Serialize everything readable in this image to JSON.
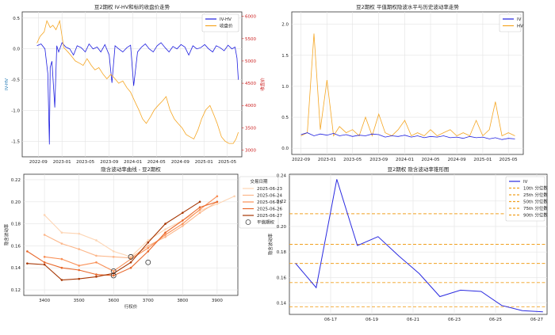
{
  "chart_data": [
    {
      "type": "line",
      "title": "豆2期权 IV-HV和标的收盘价走势",
      "xlabel": "",
      "ylabel": "IV-HV",
      "y2label": "收盘价",
      "x_ticks": [
        "2022-09",
        "2023-01",
        "2023-05",
        "2023-09",
        "2024-01",
        "2024-05",
        "2024-09",
        "2025-01",
        "2025-05"
      ],
      "y_ticks": [
        "0.5",
        "0.0",
        "-0.5",
        "-1.0",
        "-1.5"
      ],
      "y2_ticks": [
        "6000",
        "5500",
        "5000",
        "4500",
        "4000",
        "3500",
        "3000"
      ],
      "ylim": [
        -1.75,
        0.6
      ],
      "y2lim": [
        2850,
        6100
      ],
      "grid": true,
      "legend_position": "top-right",
      "series": [
        {
          "name": "IV-HV",
          "axis": "left",
          "color": "#1f1fe0",
          "x": [
            "2022-08-25",
            "2022-09-15",
            "2022-10-05",
            "2022-10-20",
            "2022-10-28",
            "2022-11-01",
            "2022-11-10",
            "2022-11-25",
            "2022-12-05",
            "2022-12-15",
            "2023-01-01",
            "2023-01-20",
            "2023-02-10",
            "2023-03-01",
            "2023-03-20",
            "2023-04-10",
            "2023-05-01",
            "2023-05-20",
            "2023-06-10",
            "2023-07-01",
            "2023-07-20",
            "2023-08-10",
            "2023-09-01",
            "2023-09-15",
            "2023-10-01",
            "2023-10-20",
            "2023-11-10",
            "2023-12-01",
            "2023-12-20",
            "2024-01-05",
            "2024-01-25",
            "2024-02-15",
            "2024-03-05",
            "2024-03-25",
            "2024-04-15",
            "2024-05-05",
            "2024-05-25",
            "2024-06-15",
            "2024-07-05",
            "2024-07-25",
            "2024-08-15",
            "2024-09-05",
            "2024-09-25",
            "2024-10-15",
            "2024-11-05",
            "2024-11-25",
            "2024-12-15",
            "2025-01-05",
            "2025-01-25",
            "2025-02-15",
            "2025-03-05",
            "2025-03-25",
            "2025-04-15",
            "2025-05-05",
            "2025-05-25",
            "2025-06-10",
            "2025-06-20",
            "2025-06-27"
          ],
          "y": [
            0.05,
            0.08,
            0.0,
            -0.4,
            -1.55,
            -0.3,
            -0.2,
            -0.95,
            0.05,
            -0.05,
            0.1,
            0.03,
            0.0,
            -0.1,
            0.05,
            0.02,
            -0.05,
            0.08,
            0.0,
            0.03,
            -0.05,
            0.07,
            -0.1,
            -0.55,
            0.05,
            0.0,
            -0.05,
            0.02,
            0.06,
            -0.6,
            -0.05,
            0.03,
            0.08,
            0.0,
            -0.05,
            0.05,
            0.1,
            0.02,
            -0.05,
            0.04,
            0.0,
            0.07,
            0.03,
            -0.1,
            0.05,
            0.0,
            0.02,
            0.07,
            0.0,
            -0.05,
            0.05,
            0.02,
            -0.03,
            0.06,
            0.0,
            0.03,
            -0.15,
            -0.5
          ]
        },
        {
          "name": "收盘价",
          "axis": "right",
          "color": "#f5a623",
          "x": [
            "2022-08-25",
            "2022-09-10",
            "2022-10-01",
            "2022-10-15",
            "2022-11-01",
            "2022-11-15",
            "2022-12-01",
            "2022-12-20",
            "2023-01-10",
            "2023-02-01",
            "2023-02-20",
            "2023-03-10",
            "2023-04-01",
            "2023-04-20",
            "2023-05-10",
            "2023-06-01",
            "2023-06-20",
            "2023-07-10",
            "2023-08-01",
            "2023-08-20",
            "2023-09-10",
            "2023-10-01",
            "2023-10-20",
            "2023-11-10",
            "2023-12-01",
            "2023-12-20",
            "2024-01-10",
            "2024-02-01",
            "2024-02-20",
            "2024-03-10",
            "2024-04-01",
            "2024-04-20",
            "2024-05-10",
            "2024-06-01",
            "2024-06-20",
            "2024-07-10",
            "2024-08-01",
            "2024-08-20",
            "2024-09-10",
            "2024-10-01",
            "2024-10-20",
            "2024-11-10",
            "2024-12-01",
            "2024-12-20",
            "2025-01-10",
            "2025-02-01",
            "2025-02-20",
            "2025-03-10",
            "2025-04-01",
            "2025-04-20",
            "2025-05-10",
            "2025-06-01",
            "2025-06-15",
            "2025-06-27"
          ],
          "y": [
            5400,
            5550,
            5650,
            5900,
            5750,
            5800,
            5700,
            5900,
            5300,
            5200,
            5100,
            5000,
            4950,
            4900,
            5050,
            4900,
            4800,
            4850,
            4700,
            4600,
            4700,
            4600,
            4500,
            4550,
            4400,
            4300,
            4100,
            3900,
            3700,
            3600,
            3750,
            3900,
            4000,
            4100,
            4200,
            3900,
            3700,
            3600,
            3500,
            3350,
            3300,
            3250,
            3450,
            3700,
            3900,
            4000,
            3800,
            3600,
            3300,
            3200,
            3150,
            3150,
            3250,
            3400
          ]
        }
      ]
    },
    {
      "type": "line",
      "title": "豆2期权 平值期权隐波水平与历史波动率走势",
      "xlabel": "",
      "ylabel": "",
      "x_ticks": [
        "2022-09",
        "2023-01",
        "2023-05",
        "2023-09",
        "2024-01",
        "2024-05",
        "2024-09",
        "2025-01",
        "2025-05"
      ],
      "y_ticks": [
        "2.0",
        "1.5",
        "1.0",
        "0.5",
        "0.0"
      ],
      "ylim": [
        -0.1,
        2.2
      ],
      "grid": true,
      "legend_position": "top-right",
      "series": [
        {
          "name": "IV",
          "color": "#1f1fe0",
          "x": [
            "2022-09",
            "2022-10",
            "2022-11",
            "2022-12",
            "2023-01",
            "2023-02",
            "2023-03",
            "2023-04",
            "2023-05",
            "2023-06",
            "2023-07",
            "2023-08",
            "2023-09",
            "2023-10",
            "2023-11",
            "2023-12",
            "2024-01",
            "2024-02",
            "2024-03",
            "2024-04",
            "2024-05",
            "2024-06",
            "2024-07",
            "2024-08",
            "2024-09",
            "2024-10",
            "2024-11",
            "2024-12",
            "2025-01",
            "2025-02",
            "2025-03",
            "2025-04",
            "2025-05",
            "2025-06"
          ],
          "y": [
            0.22,
            0.25,
            0.2,
            0.23,
            0.21,
            0.24,
            0.2,
            0.22,
            0.19,
            0.21,
            0.2,
            0.23,
            0.22,
            0.18,
            0.2,
            0.19,
            0.21,
            0.18,
            0.2,
            0.17,
            0.19,
            0.18,
            0.2,
            0.17,
            0.18,
            0.16,
            0.19,
            0.17,
            0.18,
            0.15,
            0.17,
            0.14,
            0.16,
            0.15
          ]
        },
        {
          "name": "HV",
          "color": "#f5a623",
          "x": [
            "2022-09",
            "2022-10",
            "2022-11",
            "2022-12",
            "2023-01",
            "2023-02",
            "2023-03",
            "2023-04",
            "2023-05",
            "2023-06",
            "2023-07",
            "2023-08",
            "2023-09",
            "2023-10",
            "2023-11",
            "2023-12",
            "2024-01",
            "2024-02",
            "2024-03",
            "2024-04",
            "2024-05",
            "2024-06",
            "2024-07",
            "2024-08",
            "2024-09",
            "2024-10",
            "2024-11",
            "2024-12",
            "2025-01",
            "2025-02",
            "2025-03",
            "2025-04",
            "2025-05",
            "2025-06"
          ],
          "y": [
            0.2,
            0.25,
            1.85,
            0.3,
            1.1,
            0.2,
            0.35,
            0.25,
            0.3,
            0.2,
            0.5,
            0.2,
            0.55,
            0.25,
            0.2,
            0.3,
            0.45,
            0.2,
            0.25,
            0.2,
            0.3,
            0.2,
            0.25,
            0.3,
            0.2,
            0.25,
            0.2,
            0.45,
            0.2,
            0.3,
            0.75,
            0.2,
            0.25,
            0.2
          ]
        }
      ]
    },
    {
      "type": "line",
      "title": "隐含波动率曲线 - 豆2期权",
      "xlabel": "行权价",
      "ylabel": "隐含波动率",
      "x_ticks": [
        "3400",
        "3500",
        "3600",
        "3700",
        "3800",
        "3900"
      ],
      "y_ticks": [
        "0.22",
        "0.20",
        "0.18",
        "0.16",
        "0.14",
        "0.12"
      ],
      "xlim": [
        3340,
        3960
      ],
      "ylim": [
        0.115,
        0.225
      ],
      "grid": true,
      "legend_title": "交易日期",
      "legend_position": "top-right",
      "series": [
        {
          "name": "2025-06-23",
          "color": "#fdd5b4",
          "x": [
            3400,
            3450,
            3500,
            3550,
            3600,
            3650,
            3700,
            3750,
            3800,
            3850,
            3900,
            3950
          ],
          "y": [
            0.188,
            0.172,
            0.171,
            0.165,
            0.155,
            0.15,
            0.165,
            0.175,
            0.183,
            0.192,
            0.198,
            0.205
          ]
        },
        {
          "name": "2025-06-24",
          "color": "#fcb689",
          "x": [
            3400,
            3450,
            3500,
            3550,
            3600,
            3650,
            3700,
            3750,
            3800,
            3850,
            3900
          ],
          "y": [
            0.17,
            0.162,
            0.157,
            0.151,
            0.15,
            0.149,
            0.16,
            0.168,
            0.178,
            0.19,
            0.2
          ]
        },
        {
          "name": "2025-06-25",
          "color": "#f98f55",
          "x": [
            3400,
            3450,
            3500,
            3550,
            3600,
            3650,
            3700,
            3750,
            3800,
            3850,
            3900
          ],
          "y": [
            0.15,
            0.148,
            0.142,
            0.145,
            0.137,
            0.148,
            0.158,
            0.17,
            0.18,
            0.193,
            0.205
          ]
        },
        {
          "name": "2025-06-26",
          "color": "#e8672a",
          "x": [
            3350,
            3400,
            3450,
            3500,
            3550,
            3600,
            3650,
            3700,
            3750,
            3800,
            3850,
            3900
          ],
          "y": [
            0.155,
            0.145,
            0.14,
            0.138,
            0.134,
            0.133,
            0.14,
            0.155,
            0.172,
            0.183,
            0.195,
            0.2
          ]
        },
        {
          "name": "2025-06-27",
          "color": "#a63603",
          "x": [
            3350,
            3400,
            3450,
            3500,
            3550,
            3600,
            3650,
            3700,
            3750,
            3800,
            3850
          ],
          "y": [
            0.144,
            0.143,
            0.129,
            0.13,
            0.132,
            0.135,
            0.145,
            0.163,
            0.18,
            0.19,
            0.2
          ]
        }
      ],
      "atm_points": {
        "name": "平值期权",
        "x": [
          3600,
          3600,
          3650,
          3700
        ],
        "y": [
          0.133,
          0.137,
          0.15,
          0.145
        ]
      }
    },
    {
      "type": "line",
      "title": "豆2期权 隐含波动率锥形图",
      "xlabel": "",
      "ylabel": "隐含波动率",
      "x_ticks": [
        "06-17",
        "06-19",
        "06-21",
        "06-23",
        "06-25",
        "06-27"
      ],
      "y_ticks": [
        "0.24",
        "0.22",
        "0.20",
        "0.18",
        "0.16",
        "0.14"
      ],
      "xlim": [
        0,
        12.5
      ],
      "ylim": [
        0.131,
        0.241
      ],
      "grid": true,
      "legend_position": "top-right",
      "series": [
        {
          "name": "IV",
          "color": "#2a2ae0",
          "x": [
            0.3,
            1.3,
            2.3,
            3.3,
            4.3,
            5.3,
            6.3,
            7.3,
            8.3,
            9.3,
            10.3,
            11.3,
            12.3
          ],
          "y": [
            0.171,
            0.152,
            0.237,
            0.185,
            0.192,
            0.177,
            0.163,
            0.145,
            0.15,
            0.149,
            0.138,
            0.134,
            0.133
          ]
        }
      ],
      "percentile_lines": [
        {
          "name": "10th 分位数",
          "y": 0.137
        },
        {
          "name": "25th 分位数",
          "y": 0.156
        },
        {
          "name": "50th 分位数",
          "y": 0.171
        },
        {
          "name": "75th 分位数",
          "y": 0.186
        },
        {
          "name": "90th 分位数",
          "y": 0.21
        }
      ]
    }
  ]
}
